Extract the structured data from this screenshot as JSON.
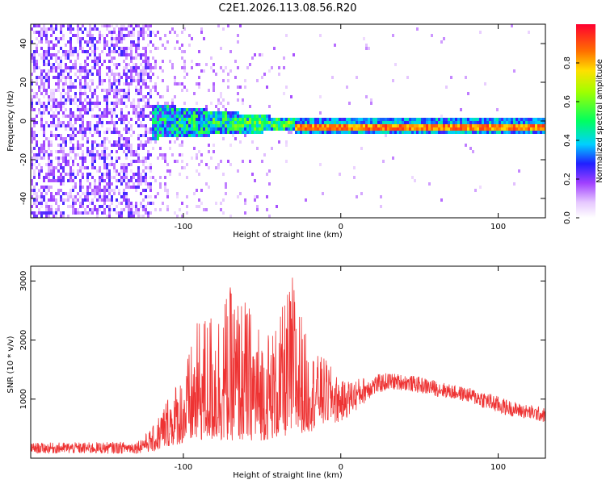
{
  "title": "C2E1.2026.113.08.56.R20",
  "chart_data": [
    {
      "type": "heatmap",
      "xlabel": "Height of straight line (km)",
      "ylabel": "Frequency (Hz)",
      "xlim": [
        -197,
        130
      ],
      "ylim": [
        -50,
        50
      ],
      "x_ticks": [
        "-100",
        "0",
        "100"
      ],
      "y_ticks": [
        "-40",
        "-20",
        "0",
        "20",
        "40"
      ],
      "colorbar": {
        "label": "Normalized spectral amplitude",
        "range": [
          0,
          1
        ],
        "ticks": [
          "0.0",
          "0.2",
          "0.4",
          "0.6",
          "0.8"
        ]
      },
      "description_regions": [
        {
          "x_from": -197,
          "x_to": -120,
          "pattern": "broadband noise",
          "amplitude": 0.15
        },
        {
          "x_from": -120,
          "x_to": -30,
          "pattern": "narrowing band around ~-1 Hz",
          "amplitude": 0.45
        },
        {
          "x_from": -30,
          "x_to": 130,
          "pattern": "narrow line at ~-2 Hz",
          "amplitude": 0.9
        }
      ],
      "grid": false
    },
    {
      "type": "line",
      "xlabel": "Height of straight line (km)",
      "ylabel": "SNR (10 * v/v)",
      "xlim": [
        -197,
        130
      ],
      "ylim": [
        0,
        3250
      ],
      "x_ticks": [
        "-100",
        "0",
        "100"
      ],
      "y_ticks": [
        "1000",
        "2000",
        "3000"
      ],
      "color": "#ee3333",
      "envelope": {
        "x": [
          -197,
          -160,
          -130,
          -120,
          -110,
          -100,
          -90,
          -80,
          -70,
          -60,
          -50,
          -40,
          -30,
          -20,
          -10,
          0,
          10,
          20,
          30,
          40,
          50,
          60,
          70,
          80,
          90,
          100,
          110,
          120,
          130
        ],
        "low": [
          80,
          70,
          80,
          100,
          200,
          250,
          300,
          300,
          300,
          300,
          300,
          350,
          400,
          450,
          500,
          600,
          800,
          1050,
          1150,
          1150,
          1100,
          1050,
          1000,
          950,
          850,
          750,
          700,
          650,
          600
        ],
        "high": [
          260,
          270,
          280,
          500,
          1100,
          1500,
          2400,
          2600,
          2900,
          2700,
          2200,
          2300,
          3200,
          1800,
          1700,
          1300,
          1350,
          1400,
          1450,
          1420,
          1380,
          1320,
          1250,
          1200,
          1150,
          1050,
          950,
          900,
          850
        ]
      },
      "grid": false
    }
  ]
}
